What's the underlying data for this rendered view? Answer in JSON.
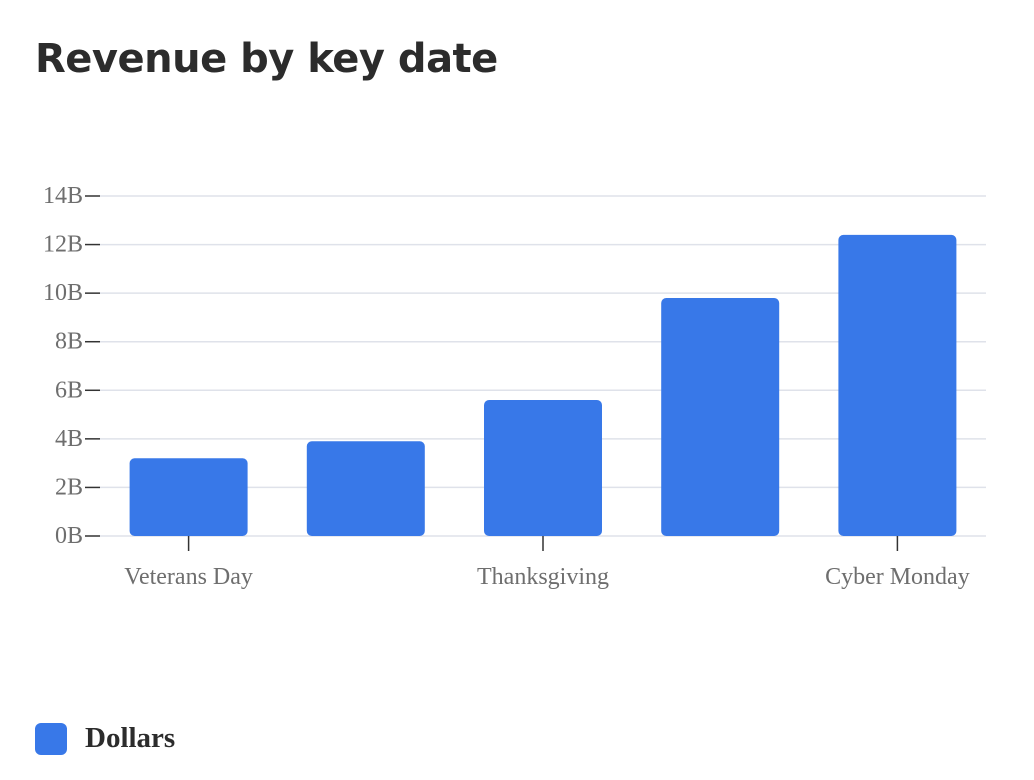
{
  "title": "Revenue by key date",
  "chart_data": {
    "type": "bar",
    "title": "Revenue by key date",
    "categories": [
      "Veterans Day",
      "",
      "Thanksgiving",
      "",
      "Cyber Monday"
    ],
    "x_tick_labels": [
      "Veterans Day",
      "Thanksgiving",
      "Cyber Monday"
    ],
    "series": [
      {
        "name": "Dollars",
        "values": [
          3.2,
          3.9,
          5.6,
          9.8,
          12.4
        ],
        "unit": "B"
      }
    ],
    "y_ticks": [
      "0B",
      "2B",
      "4B",
      "6B",
      "8B",
      "10B",
      "12B",
      "14B"
    ],
    "ylim": [
      0,
      14
    ],
    "xlabel": "",
    "ylabel": "",
    "grid": true,
    "legend_position": "bottom-left",
    "colors": {
      "bar": "#3878e8",
      "grid": "#dfe2ea",
      "axis": "#333333",
      "tick_text": "#6e6e6e",
      "title": "#2c2c2c"
    }
  },
  "legend": {
    "label": "Dollars",
    "color": "#3878e8"
  }
}
